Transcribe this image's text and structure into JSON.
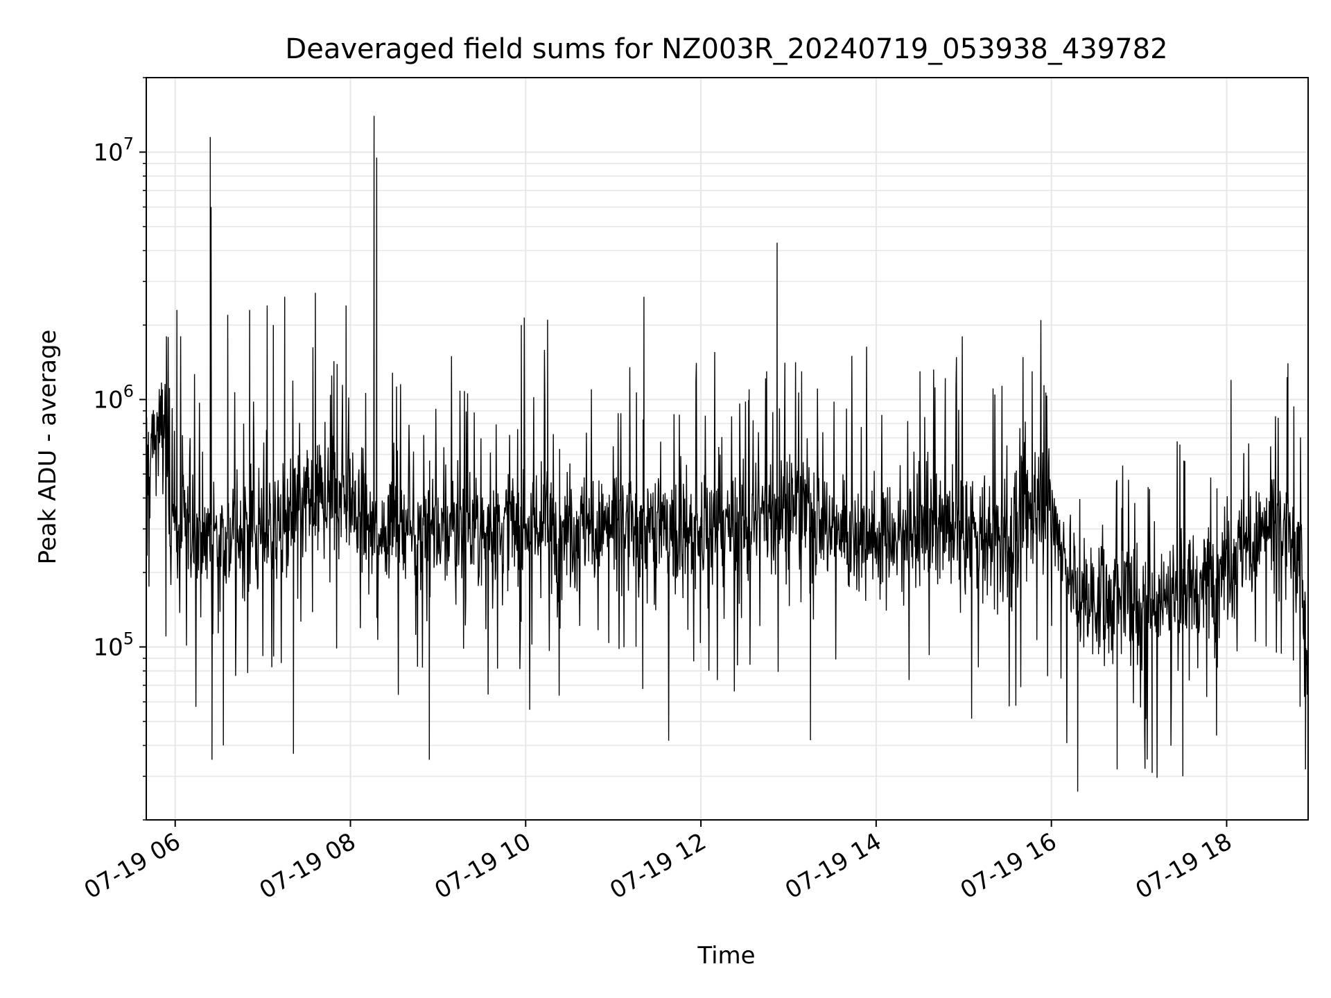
{
  "chart_data": {
    "type": "line",
    "title": "Deaveraged field sums for NZ003R_20240719_053938_439782",
    "xlabel": "Time",
    "ylabel": "Peak ADU - average",
    "y_scale": "log",
    "ylim": [
      20000,
      20000000
    ],
    "xlim_hours": [
      5.67,
      18.93
    ],
    "grid": true,
    "colors": {
      "line": "#000000",
      "grid": "#e6e6e6",
      "axes": "#000000"
    },
    "x_ticks": [
      {
        "hour": 6,
        "label": "07-19 06"
      },
      {
        "hour": 8,
        "label": "07-19 08"
      },
      {
        "hour": 10,
        "label": "07-19 10"
      },
      {
        "hour": 12,
        "label": "07-19 12"
      },
      {
        "hour": 14,
        "label": "07-19 14"
      },
      {
        "hour": 16,
        "label": "07-19 16"
      },
      {
        "hour": 18,
        "label": "07-19 18"
      }
    ],
    "y_ticks": [
      {
        "value": 100000,
        "base": "10",
        "exp": "5"
      },
      {
        "value": 1000000,
        "base": "10",
        "exp": "6"
      },
      {
        "value": 10000000,
        "base": "10",
        "exp": "7"
      }
    ],
    "series": [
      {
        "baseline_points": [
          [
            5.67,
            500000
          ],
          [
            5.75,
            700000
          ],
          [
            5.9,
            750000
          ],
          [
            5.95,
            300000
          ],
          [
            6.5,
            280000
          ],
          [
            7.0,
            280000
          ],
          [
            7.5,
            380000
          ],
          [
            8.0,
            430000
          ],
          [
            8.25,
            280000
          ],
          [
            8.5,
            320000
          ],
          [
            9.0,
            300000
          ],
          [
            10.0,
            300000
          ],
          [
            11.0,
            300000
          ],
          [
            12.0,
            290000
          ],
          [
            12.5,
            300000
          ],
          [
            13.0,
            380000
          ],
          [
            13.5,
            300000
          ],
          [
            14.0,
            280000
          ],
          [
            14.5,
            300000
          ],
          [
            15.5,
            270000
          ],
          [
            15.9,
            450000
          ],
          [
            16.3,
            160000
          ],
          [
            17.0,
            150000
          ],
          [
            17.5,
            170000
          ],
          [
            18.0,
            220000
          ],
          [
            18.5,
            300000
          ],
          [
            18.85,
            250000
          ],
          [
            18.93,
            60000
          ]
        ],
        "spikes": [
          [
            5.9,
            1800000
          ],
          [
            6.02,
            2300000
          ],
          [
            6.4,
            11500000
          ],
          [
            6.41,
            6000000
          ],
          [
            6.6,
            2200000
          ],
          [
            6.85,
            2300000
          ],
          [
            7.05,
            2400000
          ],
          [
            7.12,
            2000000
          ],
          [
            7.25,
            2600000
          ],
          [
            7.6,
            2700000
          ],
          [
            7.95,
            2400000
          ],
          [
            8.27,
            14000000
          ],
          [
            8.3,
            9500000
          ],
          [
            9.95,
            2000000
          ],
          [
            10.25,
            2100000
          ],
          [
            10.75,
            1100000
          ],
          [
            11.35,
            2600000
          ],
          [
            12.55,
            1100000
          ],
          [
            12.75,
            1300000
          ],
          [
            12.87,
            4300000
          ],
          [
            13.15,
            1300000
          ],
          [
            14.5,
            1300000
          ],
          [
            15.78,
            1300000
          ],
          [
            18.05,
            1200000
          ],
          [
            18.7,
            1400000
          ]
        ],
        "dips": [
          [
            6.42,
            35000
          ],
          [
            6.55,
            40000
          ],
          [
            7.35,
            37000
          ],
          [
            8.9,
            35000
          ],
          [
            13.25,
            42000
          ],
          [
            16.3,
            26000
          ],
          [
            16.75,
            32000
          ],
          [
            17.15,
            31000
          ],
          [
            17.5,
            30000
          ],
          [
            18.9,
            32000
          ]
        ]
      }
    ]
  }
}
